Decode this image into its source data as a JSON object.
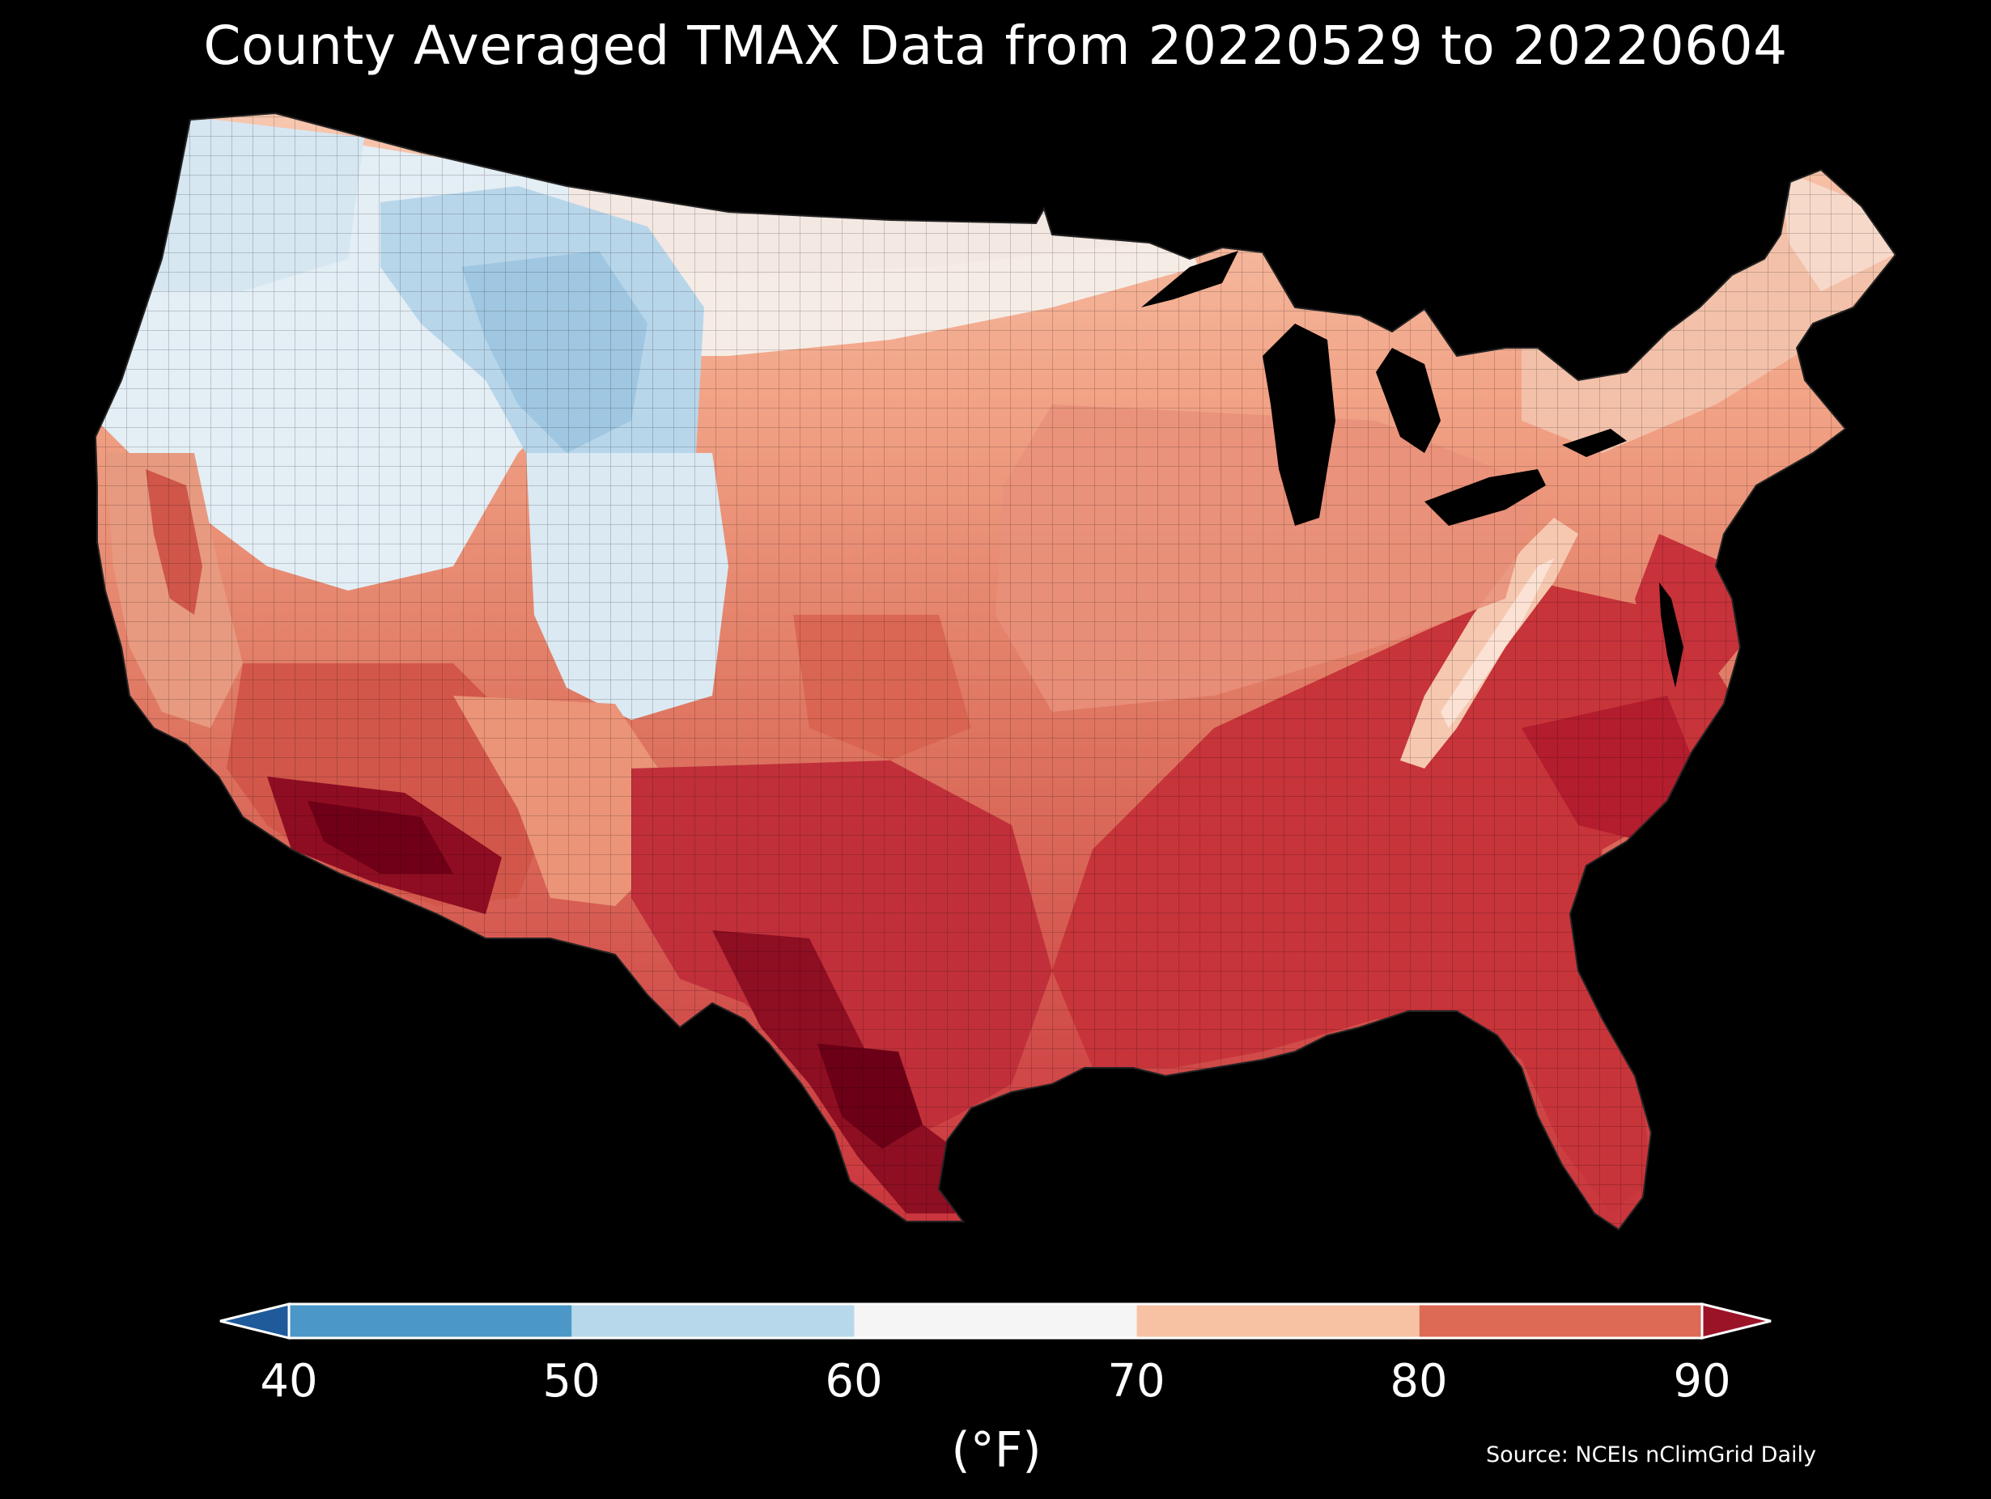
{
  "title": "County Averaged TMAX Data from 20220529 to 20220604",
  "colorbar": {
    "ticks": [
      "40",
      "50",
      "60",
      "70",
      "80",
      "90"
    ],
    "unit": "(°F)",
    "bins": [
      {
        "range": "<40",
        "color": "#1f5a9a"
      },
      {
        "range": "40-50",
        "color": "#4b98c8"
      },
      {
        "range": "50-60",
        "color": "#b7d8ea"
      },
      {
        "range": "60-70",
        "color": "#f5f5f5"
      },
      {
        "range": "70-80",
        "color": "#f7c1a4"
      },
      {
        "range": "80-90",
        "color": "#dc6a55"
      },
      {
        "range": ">90",
        "color": "#9b1327"
      }
    ]
  },
  "source": "Source: NCEIs nClimGrid Daily",
  "map": {
    "region": "Contiguous United States counties",
    "regions": [
      {
        "name": "pacific-northwest",
        "band": "50-60"
      },
      {
        "name": "northern-rockies",
        "band": "40-50"
      },
      {
        "name": "northern-plains",
        "band": "60-70"
      },
      {
        "name": "midwest-northeast",
        "band": "70-80"
      },
      {
        "name": "appalachians",
        "band": "70-80"
      },
      {
        "name": "southeast",
        "band": "80-90"
      },
      {
        "name": "southern-plains",
        "band": "80-90"
      },
      {
        "name": "desert-southwest",
        "band": ">90"
      },
      {
        "name": "south-texas",
        "band": ">90"
      }
    ]
  }
}
